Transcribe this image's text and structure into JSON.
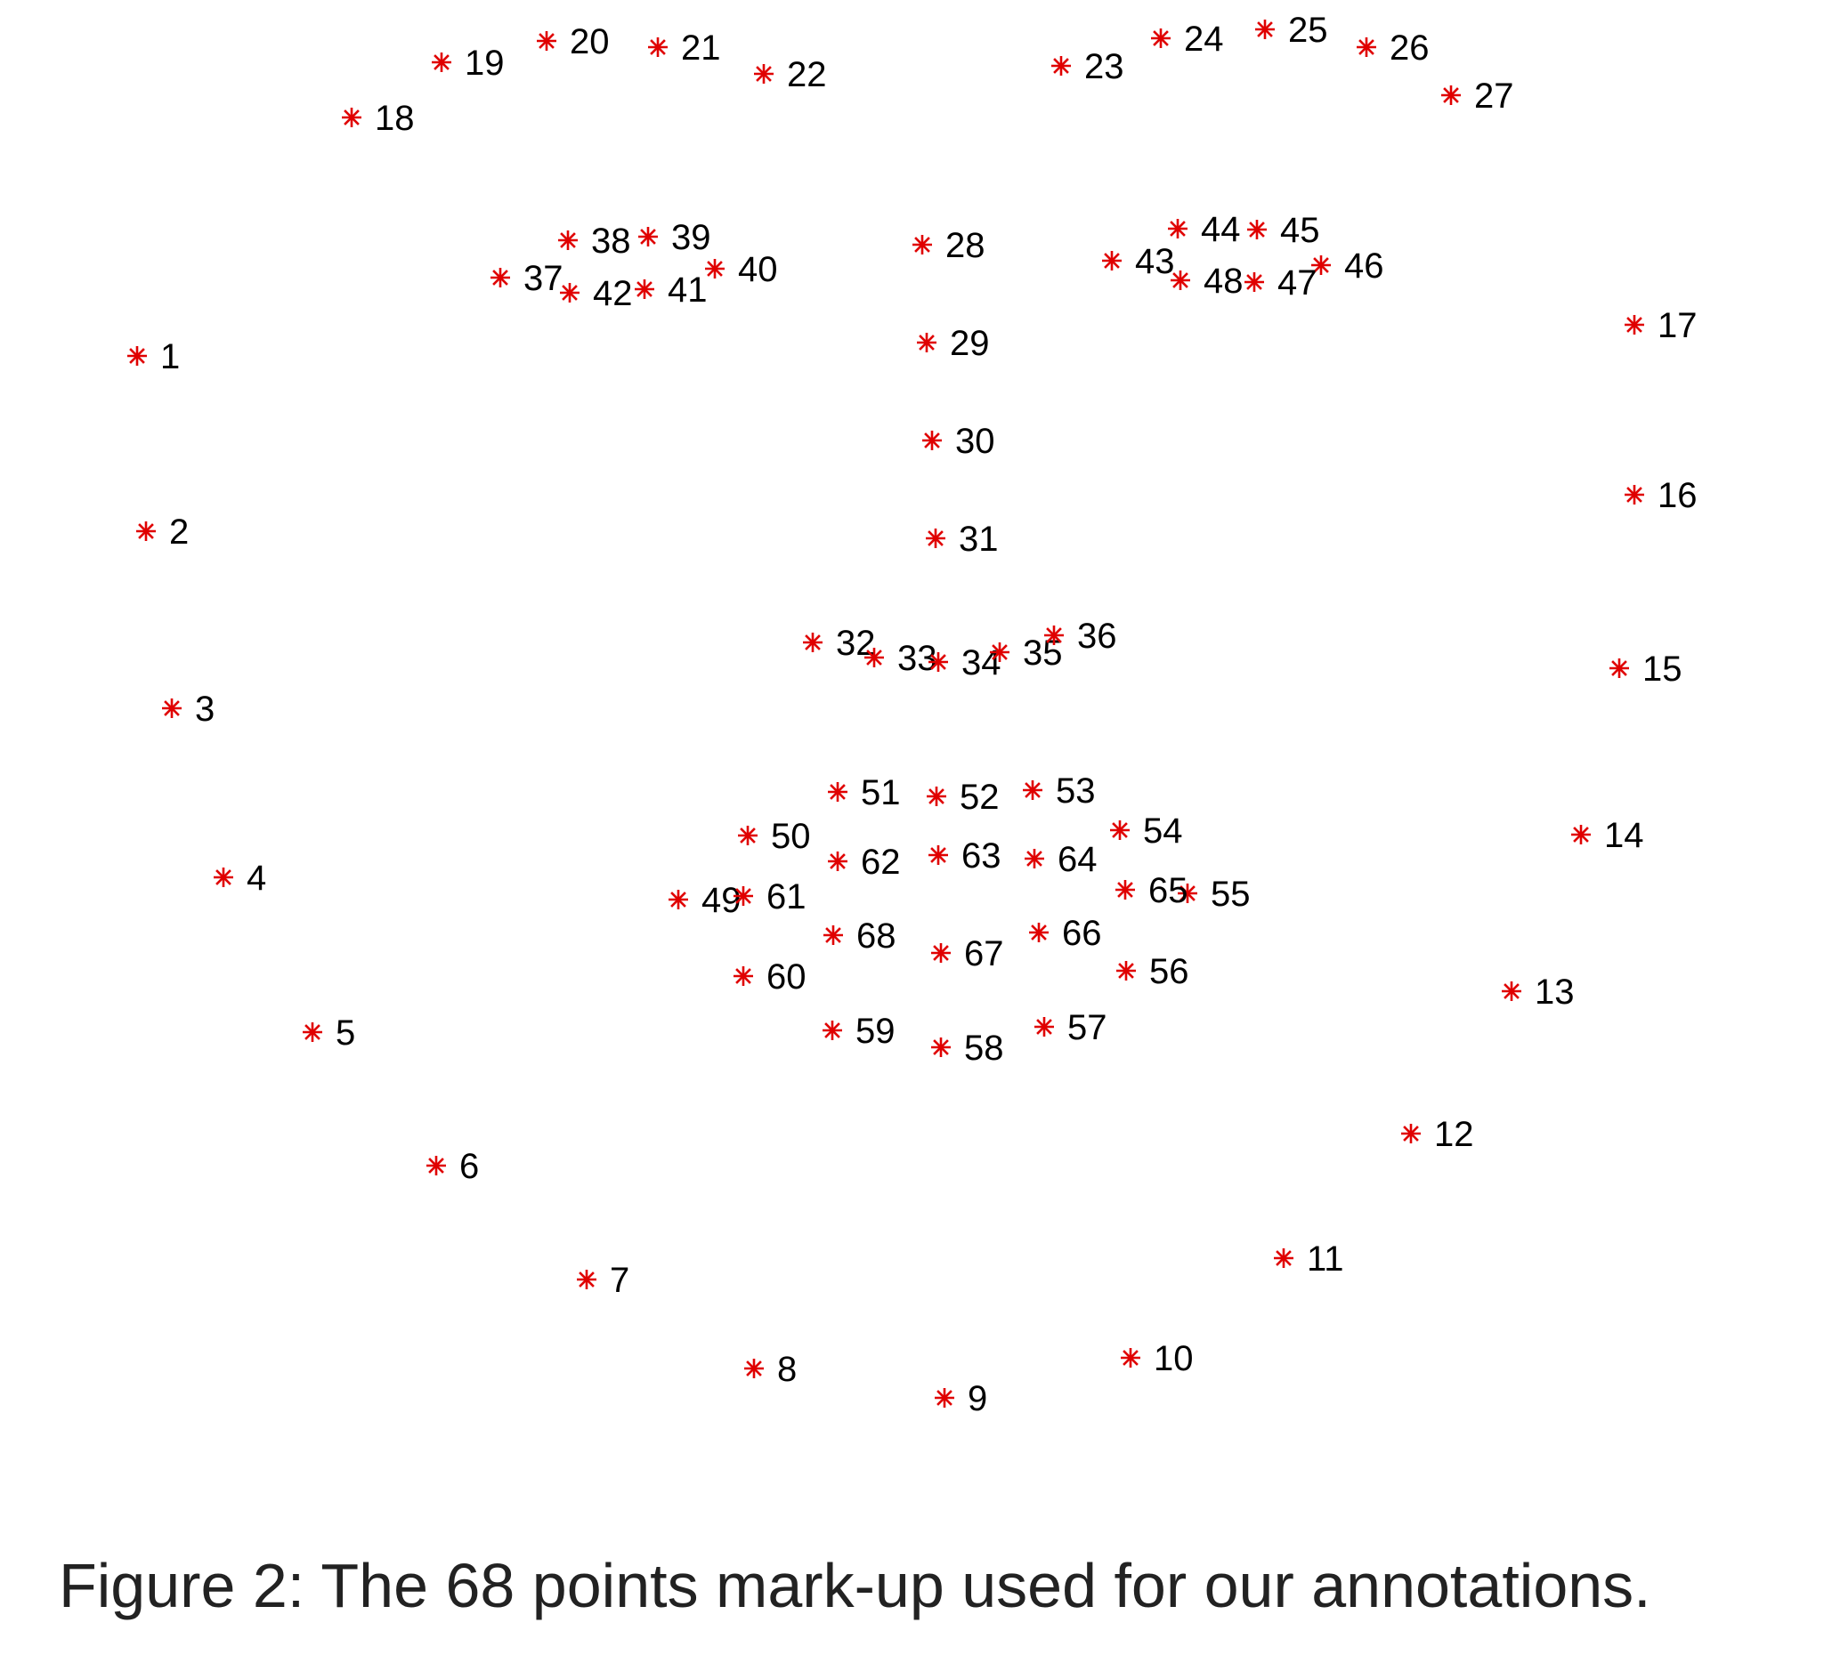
{
  "caption": "Figure 2: The 68 points mark-up used for our annotations.",
  "marker_color": "#e00000",
  "marker_symbol": "asterisk",
  "points": [
    {
      "id": 1,
      "label": "1"
    },
    {
      "id": 2,
      "label": "2"
    },
    {
      "id": 3,
      "label": "3"
    },
    {
      "id": 4,
      "label": "4"
    },
    {
      "id": 5,
      "label": "5"
    },
    {
      "id": 6,
      "label": "6"
    },
    {
      "id": 7,
      "label": "7"
    },
    {
      "id": 8,
      "label": "8"
    },
    {
      "id": 9,
      "label": "9"
    },
    {
      "id": 10,
      "label": "10"
    },
    {
      "id": 11,
      "label": "11"
    },
    {
      "id": 12,
      "label": "12"
    },
    {
      "id": 13,
      "label": "13"
    },
    {
      "id": 14,
      "label": "14"
    },
    {
      "id": 15,
      "label": "15"
    },
    {
      "id": 16,
      "label": "16"
    },
    {
      "id": 17,
      "label": "17"
    },
    {
      "id": 18,
      "label": "18"
    },
    {
      "id": 19,
      "label": "19"
    },
    {
      "id": 20,
      "label": "20"
    },
    {
      "id": 21,
      "label": "21"
    },
    {
      "id": 22,
      "label": "22"
    },
    {
      "id": 23,
      "label": "23"
    },
    {
      "id": 24,
      "label": "24"
    },
    {
      "id": 25,
      "label": "25"
    },
    {
      "id": 26,
      "label": "26"
    },
    {
      "id": 27,
      "label": "27"
    },
    {
      "id": 28,
      "label": "28"
    },
    {
      "id": 29,
      "label": "29"
    },
    {
      "id": 30,
      "label": "30"
    },
    {
      "id": 31,
      "label": "31"
    },
    {
      "id": 32,
      "label": "32"
    },
    {
      "id": 33,
      "label": "33"
    },
    {
      "id": 34,
      "label": "34"
    },
    {
      "id": 35,
      "label": "35"
    },
    {
      "id": 36,
      "label": "36"
    },
    {
      "id": 37,
      "label": "37"
    },
    {
      "id": 38,
      "label": "38"
    },
    {
      "id": 39,
      "label": "39"
    },
    {
      "id": 40,
      "label": "40"
    },
    {
      "id": 41,
      "label": "41"
    },
    {
      "id": 42,
      "label": "42"
    },
    {
      "id": 43,
      "label": "43"
    },
    {
      "id": 44,
      "label": "44"
    },
    {
      "id": 45,
      "label": "45"
    },
    {
      "id": 46,
      "label": "46"
    },
    {
      "id": 47,
      "label": "47"
    },
    {
      "id": 48,
      "label": "48"
    },
    {
      "id": 49,
      "label": "49"
    },
    {
      "id": 50,
      "label": "50"
    },
    {
      "id": 51,
      "label": "51"
    },
    {
      "id": 52,
      "label": "52"
    },
    {
      "id": 53,
      "label": "53"
    },
    {
      "id": 54,
      "label": "54"
    },
    {
      "id": 55,
      "label": "55"
    },
    {
      "id": 56,
      "label": "56"
    },
    {
      "id": 57,
      "label": "57"
    },
    {
      "id": 58,
      "label": "58"
    },
    {
      "id": 59,
      "label": "59"
    },
    {
      "id": 60,
      "label": "60"
    },
    {
      "id": 61,
      "label": "61"
    },
    {
      "id": 62,
      "label": "62"
    },
    {
      "id": 63,
      "label": "63"
    },
    {
      "id": 64,
      "label": "64"
    },
    {
      "id": 65,
      "label": "65"
    },
    {
      "id": 66,
      "label": "66"
    },
    {
      "id": 67,
      "label": "67"
    },
    {
      "id": 68,
      "label": "68"
    }
  ]
}
